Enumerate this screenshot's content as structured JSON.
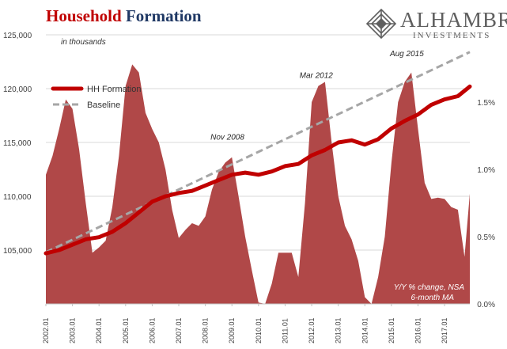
{
  "header": {
    "title_part1": "Household",
    "title_part2": "Formation"
  },
  "logo": {
    "name": "ALHAMBRA",
    "sub": "INVESTMENTS",
    "icon": "diamond-emblem-icon"
  },
  "colors": {
    "hh_line": "#c00000",
    "area_fill": "#b04848",
    "baseline": "#a6a6a6",
    "title_red": "#c00000",
    "title_blue": "#1f3864"
  },
  "chart_data": {
    "type": "line+area",
    "units_note": "in thousands",
    "area_note_line1": "Y/Y % change, NSA",
    "area_note_line2": "6-month MA",
    "legend": [
      {
        "label": "HH Formation",
        "style": "solid-red-thick"
      },
      {
        "label": "Baseline",
        "style": "dashed-gray"
      }
    ],
    "legend_position": "top-left",
    "left_axis": {
      "range": [
        100000,
        125000
      ],
      "ticks": [
        105000,
        110000,
        115000,
        120000,
        125000
      ],
      "tick_labels": [
        "105,000",
        "110,000",
        "115,000",
        "120,000",
        "125,000"
      ]
    },
    "right_axis": {
      "range": [
        0,
        2.0
      ],
      "ticks": [
        0,
        0.5,
        1.0,
        1.5
      ],
      "tick_labels": [
        "0.0%",
        "0.5%",
        "1.0%",
        "1.5%"
      ]
    },
    "x_axis": {
      "range": [
        2002.0,
        2017.95
      ],
      "tick_labels": [
        "2002.01",
        "2003.01",
        "2004.01",
        "2005.01",
        "2006.01",
        "2007.01",
        "2008.01",
        "2009.01",
        "2010.01",
        "2011.01",
        "2012.01",
        "2013.01",
        "2014.01",
        "2015.01",
        "2016.01",
        "2017.01"
      ],
      "tick_values": [
        2002,
        2003,
        2004,
        2005,
        2006,
        2007,
        2008,
        2009,
        2010,
        2011,
        2012,
        2013,
        2014,
        2015,
        2016,
        2017
      ]
    },
    "annotations": [
      {
        "text": "Nov 2008",
        "x": 2008.83,
        "y": 1.22
      },
      {
        "text": "Mar 2012",
        "x": 2012.17,
        "y": 1.68
      },
      {
        "text": "Aug 2015",
        "x": 2015.58,
        "y": 1.84
      }
    ],
    "series": [
      {
        "name": "HH Formation",
        "axis": "left",
        "x": [
          2002.0,
          2002.5,
          2003.0,
          2003.5,
          2004.0,
          2004.5,
          2005.0,
          2005.5,
          2006.0,
          2006.5,
          2007.0,
          2007.5,
          2008.0,
          2008.5,
          2009.0,
          2009.5,
          2010.0,
          2010.5,
          2011.0,
          2011.5,
          2012.0,
          2012.5,
          2013.0,
          2013.5,
          2014.0,
          2014.5,
          2015.0,
          2015.5,
          2016.0,
          2016.5,
          2017.0,
          2017.5,
          2017.95
        ],
        "y": [
          104700,
          105000,
          105500,
          106000,
          106200,
          106700,
          107500,
          108500,
          109500,
          110000,
          110300,
          110500,
          111000,
          111500,
          112000,
          112200,
          112000,
          112300,
          112800,
          113000,
          113800,
          114300,
          115000,
          115200,
          114800,
          115300,
          116300,
          117000,
          117600,
          118500,
          119000,
          119300,
          120200
        ]
      },
      {
        "name": "Baseline",
        "axis": "left",
        "x": [
          2002.0,
          2017.95
        ],
        "y": [
          104800,
          123400
        ]
      },
      {
        "name": "Y/Y % change",
        "axis": "right",
        "x": [
          2002.0,
          2002.25,
          2002.5,
          2002.75,
          2003.0,
          2003.25,
          2003.5,
          2003.75,
          2004.0,
          2004.25,
          2004.5,
          2004.75,
          2005.0,
          2005.25,
          2005.5,
          2005.75,
          2006.0,
          2006.25,
          2006.5,
          2006.75,
          2007.0,
          2007.25,
          2007.5,
          2007.75,
          2008.0,
          2008.25,
          2008.5,
          2008.75,
          2009.0,
          2009.25,
          2009.5,
          2009.75,
          2010.0,
          2010.25,
          2010.5,
          2010.75,
          2011.0,
          2011.25,
          2011.5,
          2011.75,
          2012.0,
          2012.25,
          2012.5,
          2012.75,
          2013.0,
          2013.25,
          2013.5,
          2013.75,
          2014.0,
          2014.25,
          2014.5,
          2014.75,
          2015.0,
          2015.25,
          2015.5,
          2015.75,
          2016.0,
          2016.25,
          2016.5,
          2016.75,
          2017.0,
          2017.25,
          2017.5,
          2017.75,
          2017.95
        ],
        "y": [
          0.96,
          1.1,
          1.3,
          1.52,
          1.45,
          1.15,
          0.75,
          0.38,
          0.42,
          0.47,
          0.72,
          1.1,
          1.62,
          1.78,
          1.72,
          1.42,
          1.3,
          1.2,
          1.0,
          0.7,
          0.49,
          0.55,
          0.6,
          0.58,
          0.65,
          0.85,
          0.98,
          1.05,
          1.09,
          0.8,
          0.5,
          0.25,
          0.01,
          0.0,
          0.15,
          0.38,
          0.38,
          0.38,
          0.2,
          0.75,
          1.5,
          1.62,
          1.65,
          1.2,
          0.8,
          0.58,
          0.48,
          0.32,
          0.05,
          0.0,
          0.2,
          0.5,
          1.05,
          1.5,
          1.65,
          1.72,
          1.3,
          0.9,
          0.78,
          0.79,
          0.78,
          0.72,
          0.7,
          0.35,
          0.82
        ]
      }
    ]
  }
}
